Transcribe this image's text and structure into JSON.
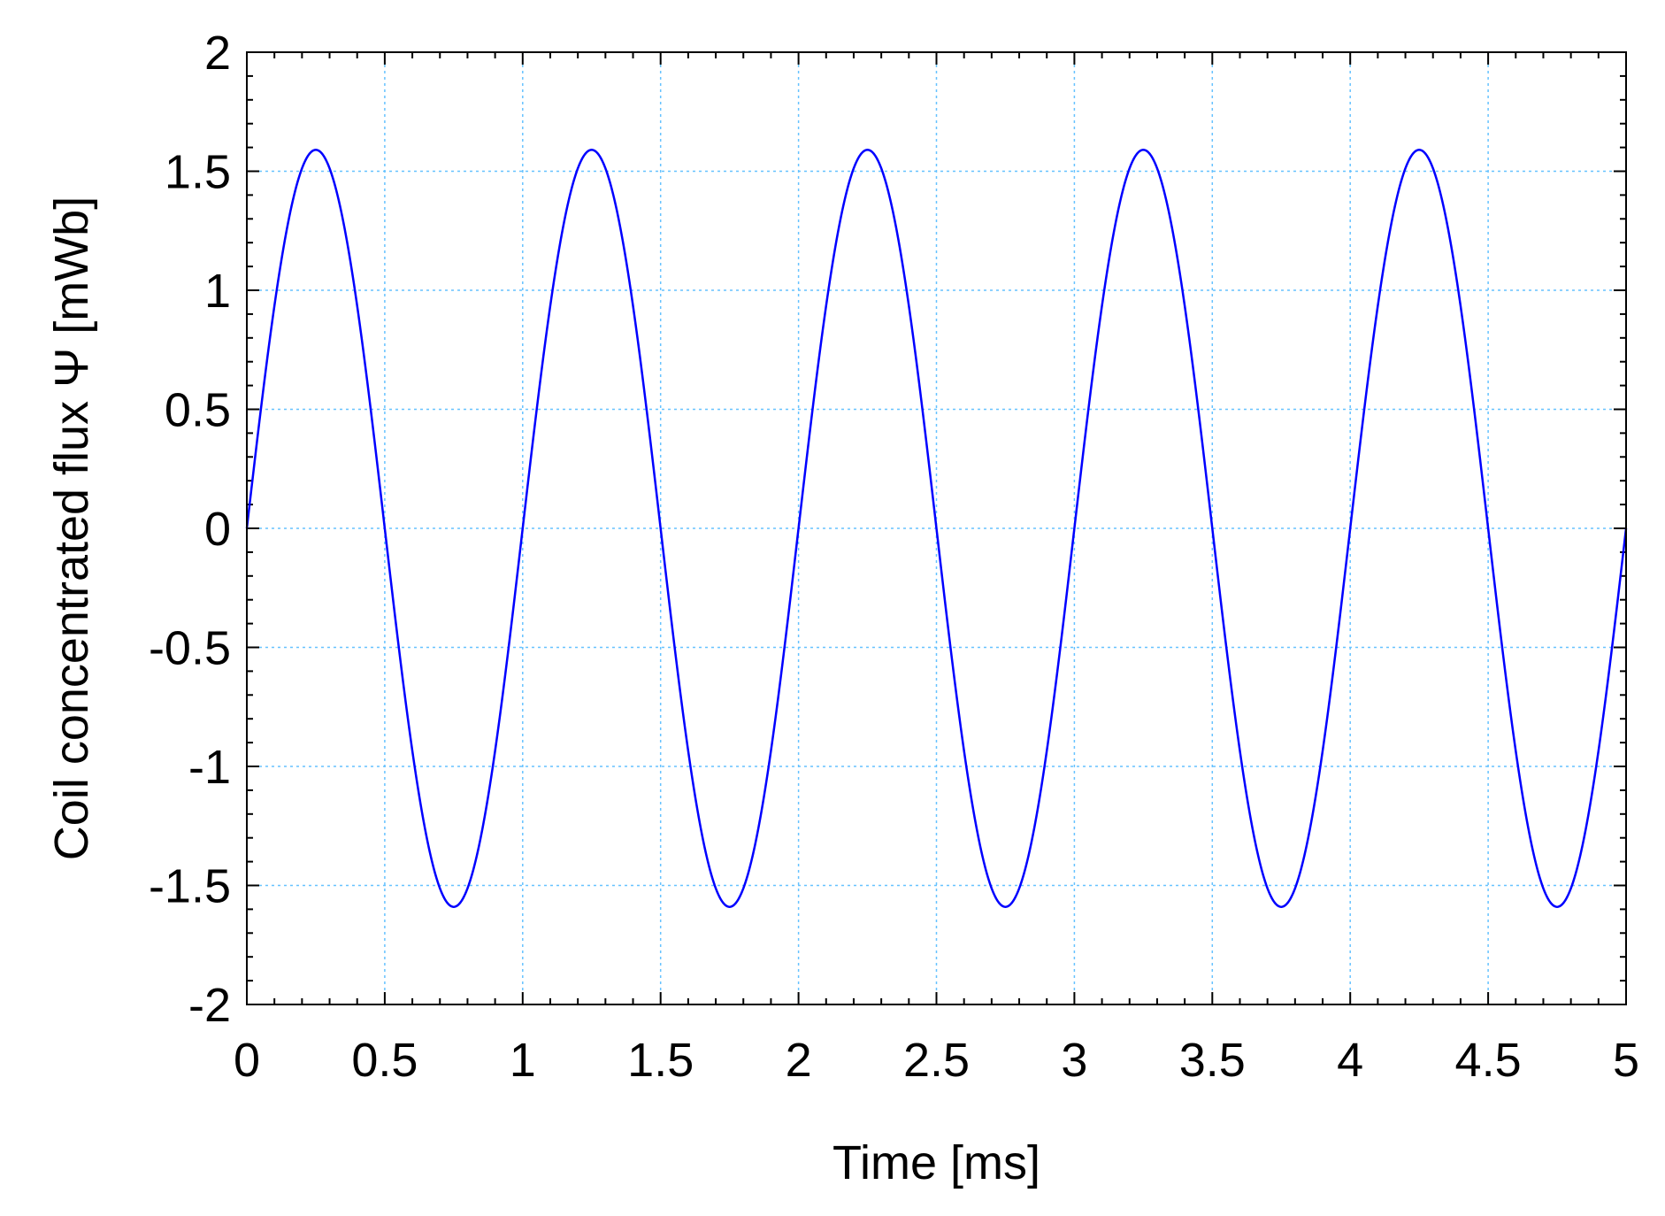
{
  "chart_data": {
    "type": "line",
    "xlabel": "Time [ms]",
    "ylabel": "Coil concentrated flux  Ψ  [mWb]",
    "xlim": [
      0,
      5
    ],
    "ylim": [
      -2,
      2
    ],
    "xticks": [
      0,
      0.5,
      1,
      1.5,
      2,
      2.5,
      3,
      3.5,
      4,
      4.5,
      5
    ],
    "xtick_labels": [
      "0",
      "0.5",
      "1",
      "1.5",
      "2",
      "2.5",
      "3",
      "3.5",
      "4",
      "4.5",
      "5"
    ],
    "yticks": [
      2,
      1.5,
      1,
      0.5,
      0,
      -0.5,
      -1,
      -1.5,
      -2
    ],
    "ytick_labels": [
      "2",
      "1.5",
      "1",
      "0.5",
      "0",
      "-0.5",
      "-1",
      "-1.5",
      "-2"
    ],
    "grid": true,
    "colors": {
      "line": "#0000ff",
      "grid": "#66c2ff",
      "axes": "#000000"
    },
    "series": [
      {
        "function": "sine",
        "amplitude": 1.59,
        "period": 1,
        "x": [
          0,
          0.25,
          0.5,
          0.75,
          1,
          1.25,
          1.5,
          1.75,
          2,
          2.25,
          2.5,
          2.75,
          3,
          3.25,
          3.5,
          3.75,
          4,
          4.25,
          4.5,
          4.75,
          5
        ],
        "y": [
          0,
          1.59,
          0,
          -1.59,
          0,
          1.59,
          0,
          -1.59,
          0,
          1.59,
          0,
          -1.59,
          0,
          1.59,
          0,
          -1.59,
          0,
          1.59,
          0,
          -1.59,
          0
        ]
      }
    ]
  }
}
